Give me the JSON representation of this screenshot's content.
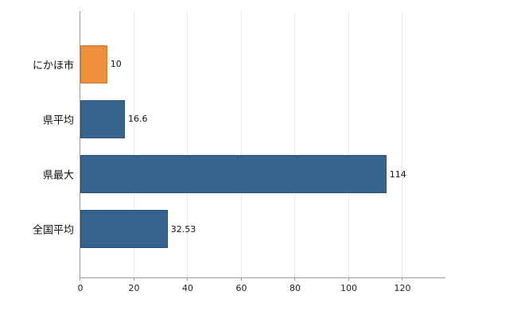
{
  "chart_data": {
    "type": "bar",
    "orientation": "horizontal",
    "title": "",
    "xlabel": "",
    "ylabel": "",
    "categories": [
      "にかほ市",
      "県平均",
      "県最大",
      "全国平均"
    ],
    "values": [
      10,
      16.6,
      114,
      32.53
    ],
    "value_labels": [
      "10",
      "16.6",
      "114",
      "32.53"
    ],
    "bar_colors": [
      "#ef8f3a",
      "#35648e",
      "#35648e",
      "#35648e"
    ],
    "bar_border_colors": [
      "#c8742a",
      "#2a5174",
      "#2a5174",
      "#2a5174"
    ],
    "x_ticks": [
      0,
      20,
      40,
      60,
      80,
      100,
      120
    ],
    "xlim": [
      0,
      136
    ],
    "grid": "vertical",
    "legend": "none",
    "background": "#ffffff",
    "axis_color": "#9a9a9a",
    "grid_color": "#e8e8e8"
  }
}
